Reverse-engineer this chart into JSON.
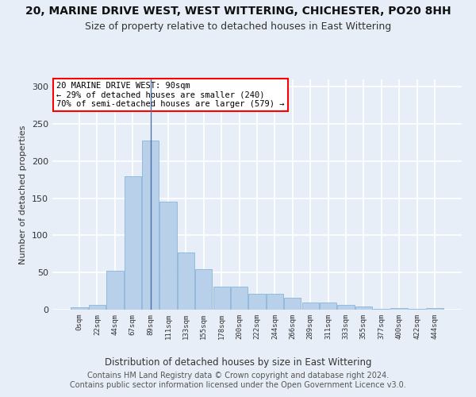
{
  "title": "20, MARINE DRIVE WEST, WEST WITTERING, CHICHESTER, PO20 8HH",
  "subtitle": "Size of property relative to detached houses in East Wittering",
  "xlabel": "Distribution of detached houses by size in East Wittering",
  "ylabel": "Number of detached properties",
  "bar_color": "#b8d0ea",
  "bar_edge_color": "#7aadd4",
  "vline_color": "#4a6fa5",
  "vline_x": 4,
  "annotation_box_text": "20 MARINE DRIVE WEST: 90sqm\n← 29% of detached houses are smaller (240)\n70% of semi-detached houses are larger (579) →",
  "annotation_box_color": "white",
  "annotation_box_edge_color": "red",
  "categories": [
    "0sqm",
    "22sqm",
    "44sqm",
    "67sqm",
    "89sqm",
    "111sqm",
    "133sqm",
    "155sqm",
    "178sqm",
    "200sqm",
    "222sqm",
    "244sqm",
    "266sqm",
    "289sqm",
    "311sqm",
    "333sqm",
    "355sqm",
    "377sqm",
    "400sqm",
    "422sqm",
    "444sqm"
  ],
  "values": [
    3,
    6,
    52,
    180,
    228,
    145,
    77,
    55,
    31,
    31,
    21,
    21,
    16,
    10,
    10,
    6,
    4,
    1,
    2,
    1,
    2
  ],
  "ylim": [
    0,
    310
  ],
  "yticks": [
    0,
    50,
    100,
    150,
    200,
    250,
    300
  ],
  "footer": "Contains HM Land Registry data © Crown copyright and database right 2024.\nContains public sector information licensed under the Open Government Licence v3.0.",
  "bg_color": "#e8eef8",
  "grid_color": "white",
  "title_fontsize": 10,
  "subtitle_fontsize": 9,
  "footer_fontsize": 7
}
